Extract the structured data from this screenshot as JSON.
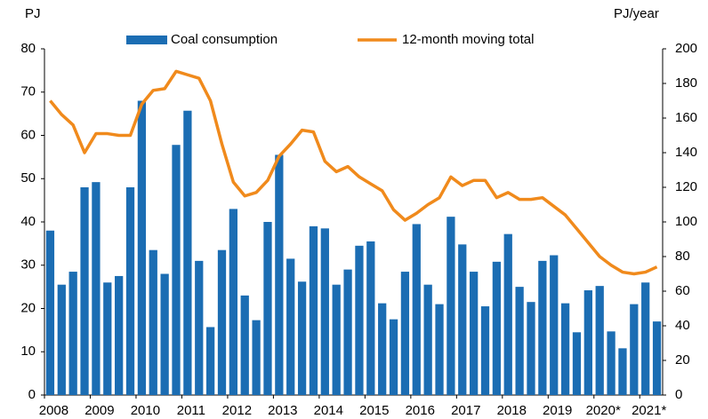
{
  "chart_data": {
    "type": "bar",
    "y_label": "PJ",
    "y2_label": "PJ/year",
    "categories": [
      "2008",
      null,
      null,
      null,
      "2009",
      null,
      null,
      null,
      "2010",
      null,
      null,
      null,
      "2011",
      null,
      null,
      null,
      "2012",
      null,
      null,
      null,
      "2013",
      null,
      null,
      null,
      "2014",
      null,
      null,
      null,
      "2015",
      null,
      null,
      null,
      "2016",
      null,
      null,
      null,
      "2017",
      null,
      null,
      null,
      "2018",
      null,
      null,
      null,
      "2019",
      null,
      null,
      null,
      "2020*",
      null,
      null,
      null,
      "2021*",
      null
    ],
    "series": [
      {
        "name": "Coal consumption",
        "type": "bar",
        "axis": "y",
        "color": "#1b6db3",
        "values": [
          38,
          25.5,
          28.5,
          48,
          49.2,
          26,
          27.5,
          48,
          68,
          33.5,
          28,
          57.8,
          65.7,
          31,
          15.7,
          33.5,
          43,
          23,
          17.3,
          40,
          55.5,
          31.5,
          26.2,
          39,
          38.5,
          25.5,
          29,
          34.5,
          35.5,
          21.2,
          17.5,
          28.5,
          39.5,
          25.5,
          21,
          41.2,
          34.8,
          28.5,
          20.5,
          30.8,
          37.2,
          25,
          21.5,
          31,
          32.3,
          21.2,
          14.5,
          24.2,
          25.2,
          14.7,
          10.8,
          21,
          26,
          17
        ]
      },
      {
        "name": "12-month moving total",
        "type": "line",
        "axis": "y2",
        "color": "#f08a1c",
        "values": [
          170,
          162,
          156,
          140,
          151,
          151,
          150,
          150,
          168,
          176,
          177,
          187,
          185,
          183,
          170,
          145,
          123,
          115,
          117,
          124,
          138,
          145,
          153,
          152,
          135,
          129,
          132,
          126,
          122,
          118,
          107,
          101,
          105,
          110,
          114,
          126,
          121,
          124,
          124,
          114,
          117,
          113,
          113,
          114,
          109,
          104,
          96,
          88,
          80,
          75,
          71,
          70,
          71,
          74
        ]
      }
    ],
    "ylim": [
      0,
      80
    ],
    "yticks": [
      0,
      10,
      20,
      30,
      40,
      50,
      60,
      70,
      80
    ],
    "y2lim": [
      0,
      200
    ],
    "y2ticks": [
      0,
      20,
      40,
      60,
      80,
      100,
      120,
      140,
      160,
      180,
      200
    ],
    "legend": "top"
  }
}
